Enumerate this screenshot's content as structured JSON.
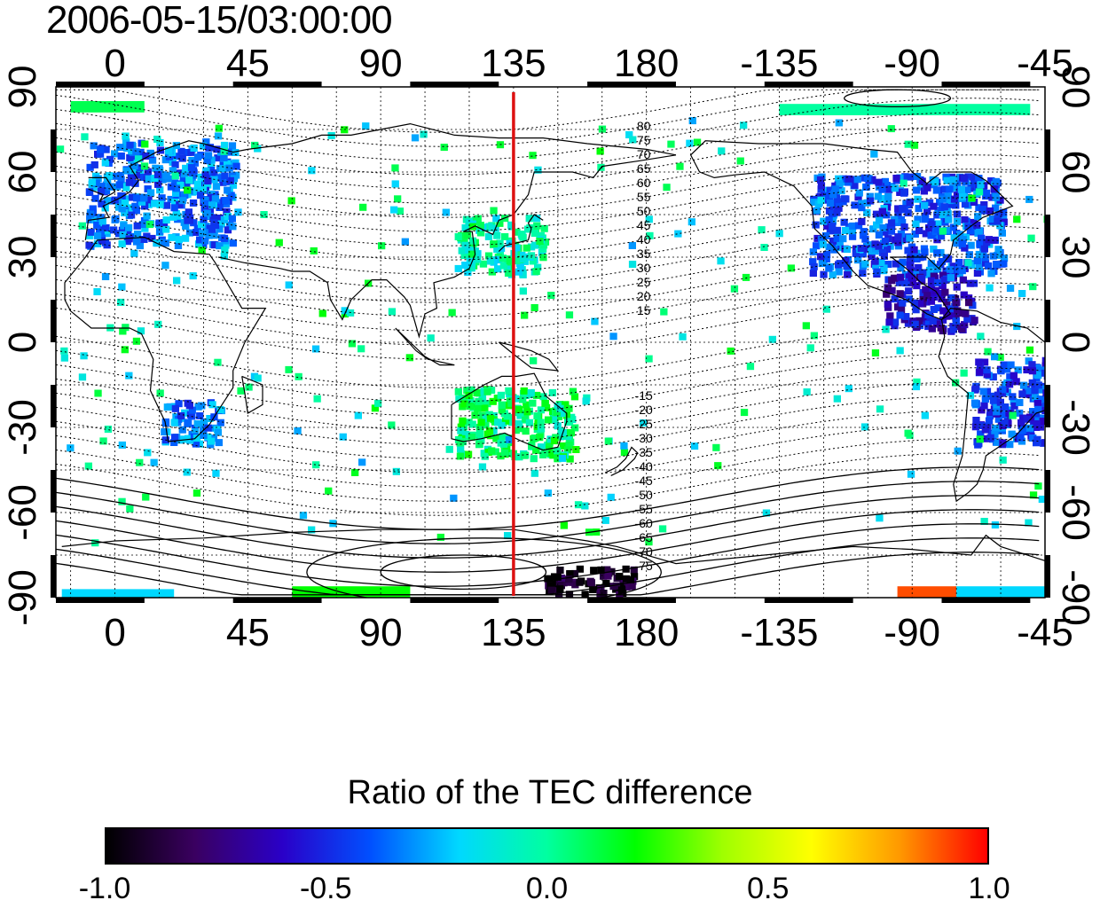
{
  "title": "2006-05-15/03:00:00",
  "map": {
    "projection": "equirectangular",
    "lon_range": [
      -20,
      315
    ],
    "lat_range": [
      -90,
      90
    ],
    "grid": true,
    "lon_ticks": [
      {
        "value": 0,
        "label": "0"
      },
      {
        "value": 45,
        "label": "45"
      },
      {
        "value": 90,
        "label": "90"
      },
      {
        "value": 135,
        "label": "135"
      },
      {
        "value": 180,
        "label": "180"
      },
      {
        "value": 225,
        "label": "-135"
      },
      {
        "value": 270,
        "label": "-90"
      },
      {
        "value": 315,
        "label": "-45"
      }
    ],
    "lat_ticks": [
      {
        "value": 90,
        "label": "90"
      },
      {
        "value": 60,
        "label": "60"
      },
      {
        "value": 30,
        "label": "30"
      },
      {
        "value": 0,
        "label": "0"
      },
      {
        "value": -30,
        "label": "-30"
      },
      {
        "value": -60,
        "label": "-60"
      },
      {
        "value": -90,
        "label": "-90"
      }
    ],
    "marker_meridian": {
      "lon": 135,
      "color": "#dd1111"
    },
    "magnetic_latitude_labels": [
      "80",
      "75",
      "70",
      "65",
      "60",
      "55",
      "50",
      "45",
      "40",
      "35",
      "30",
      "25",
      "20",
      "15",
      "-15",
      "-20",
      "-25",
      "-30",
      "-35",
      "-40",
      "-45",
      "-50",
      "-55",
      "-60",
      "-65",
      "-70",
      "-75"
    ],
    "data_regions": [
      {
        "name": "Europe",
        "lon": [
          -10,
          40
        ],
        "lat": [
          35,
          72
        ],
        "ratio": -0.35
      },
      {
        "name": "North America",
        "lon": [
          235,
          300
        ],
        "lat": [
          25,
          60
        ],
        "ratio": -0.4
      },
      {
        "name": "Central America",
        "lon": [
          260,
          290
        ],
        "lat": [
          5,
          25
        ],
        "ratio": -0.6
      },
      {
        "name": "East Asia",
        "lon": [
          115,
          145
        ],
        "lat": [
          25,
          45
        ],
        "ratio": -0.05
      },
      {
        "name": "Southern Africa",
        "lon": [
          15,
          35
        ],
        "lat": [
          -35,
          -20
        ],
        "ratio": -0.35
      },
      {
        "name": "South America",
        "lon": [
          290,
          320
        ],
        "lat": [
          -35,
          -5
        ],
        "ratio": -0.45
      },
      {
        "name": "Australia",
        "lon": [
          115,
          155
        ],
        "lat": [
          -40,
          -15
        ],
        "ratio": 0.05
      },
      {
        "name": "Antarctic sector",
        "lon": [
          145,
          175
        ],
        "lat": [
          -88,
          -78
        ],
        "ratio": -0.95
      }
    ]
  },
  "colorbar": {
    "title": "Ratio of the TEC difference",
    "range": [
      -1.0,
      1.0
    ],
    "ticks": [
      "-1.0",
      "-0.5",
      "0.0",
      "0.5",
      "1.0"
    ],
    "colors": [
      "#000000",
      "#3a0060",
      "#2a00c8",
      "#0050ff",
      "#00d8ff",
      "#00ffa0",
      "#00ff00",
      "#a0ff00",
      "#ffff00",
      "#ff9900",
      "#ff0000"
    ]
  }
}
